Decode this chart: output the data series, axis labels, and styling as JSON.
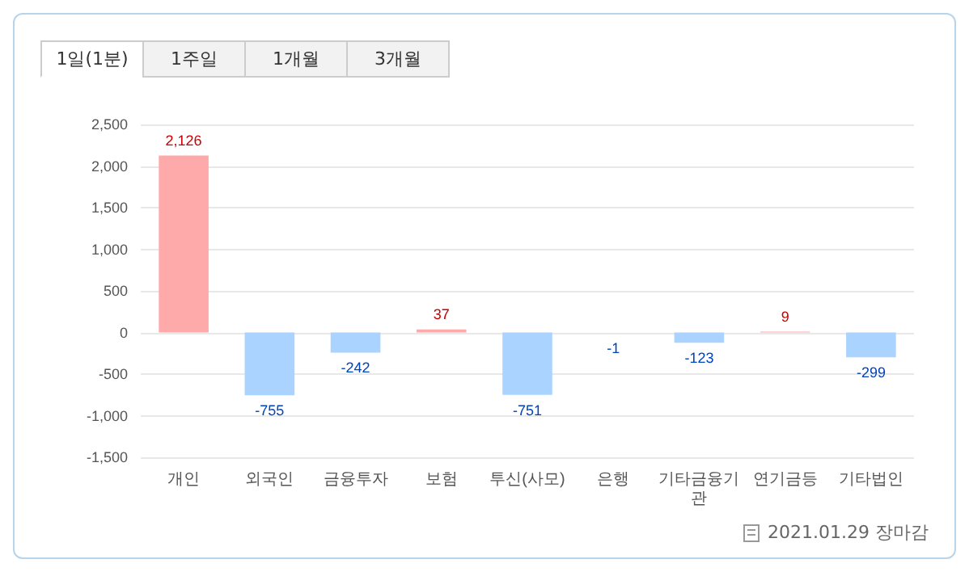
{
  "chart_data": {
    "type": "bar",
    "categories": [
      "개인",
      "외국인",
      "금융투자",
      "보험",
      "투신(사모)",
      "은행",
      "기타금융기관",
      "연기금등",
      "기타법인"
    ],
    "values": [
      2126,
      -755,
      -242,
      37,
      -751,
      -1,
      -123,
      9,
      -299
    ],
    "colors": [
      "#ffaaaa",
      "#aad4ff",
      "#aad4ff",
      "#ffaaaa",
      "#aad4ff",
      "#aad4ff",
      "#aad4ff",
      "#ffaaaa",
      "#aad4ff"
    ],
    "value_labels": [
      "2,126",
      "-755",
      "-242",
      "37",
      "-751",
      "-1",
      "-123",
      "9",
      "-299"
    ],
    "ylim": [
      -1500,
      2500
    ],
    "yticks": [
      {
        "value": -1500,
        "label": "-1,500"
      },
      {
        "value": -1000,
        "label": "-1,000"
      },
      -500,
      0,
      500,
      {
        "value": 1000,
        "label": "1,000"
      },
      {
        "value": 1500,
        "label": "1,500"
      },
      {
        "value": 2000,
        "label": "2,000"
      },
      {
        "value": 2500,
        "label": "2,500"
      }
    ],
    "grid": "y",
    "annotations": [
      "1일(1분)",
      "1주일",
      "1개월",
      "3개월",
      "2021.01.29 장마감"
    ]
  }
}
